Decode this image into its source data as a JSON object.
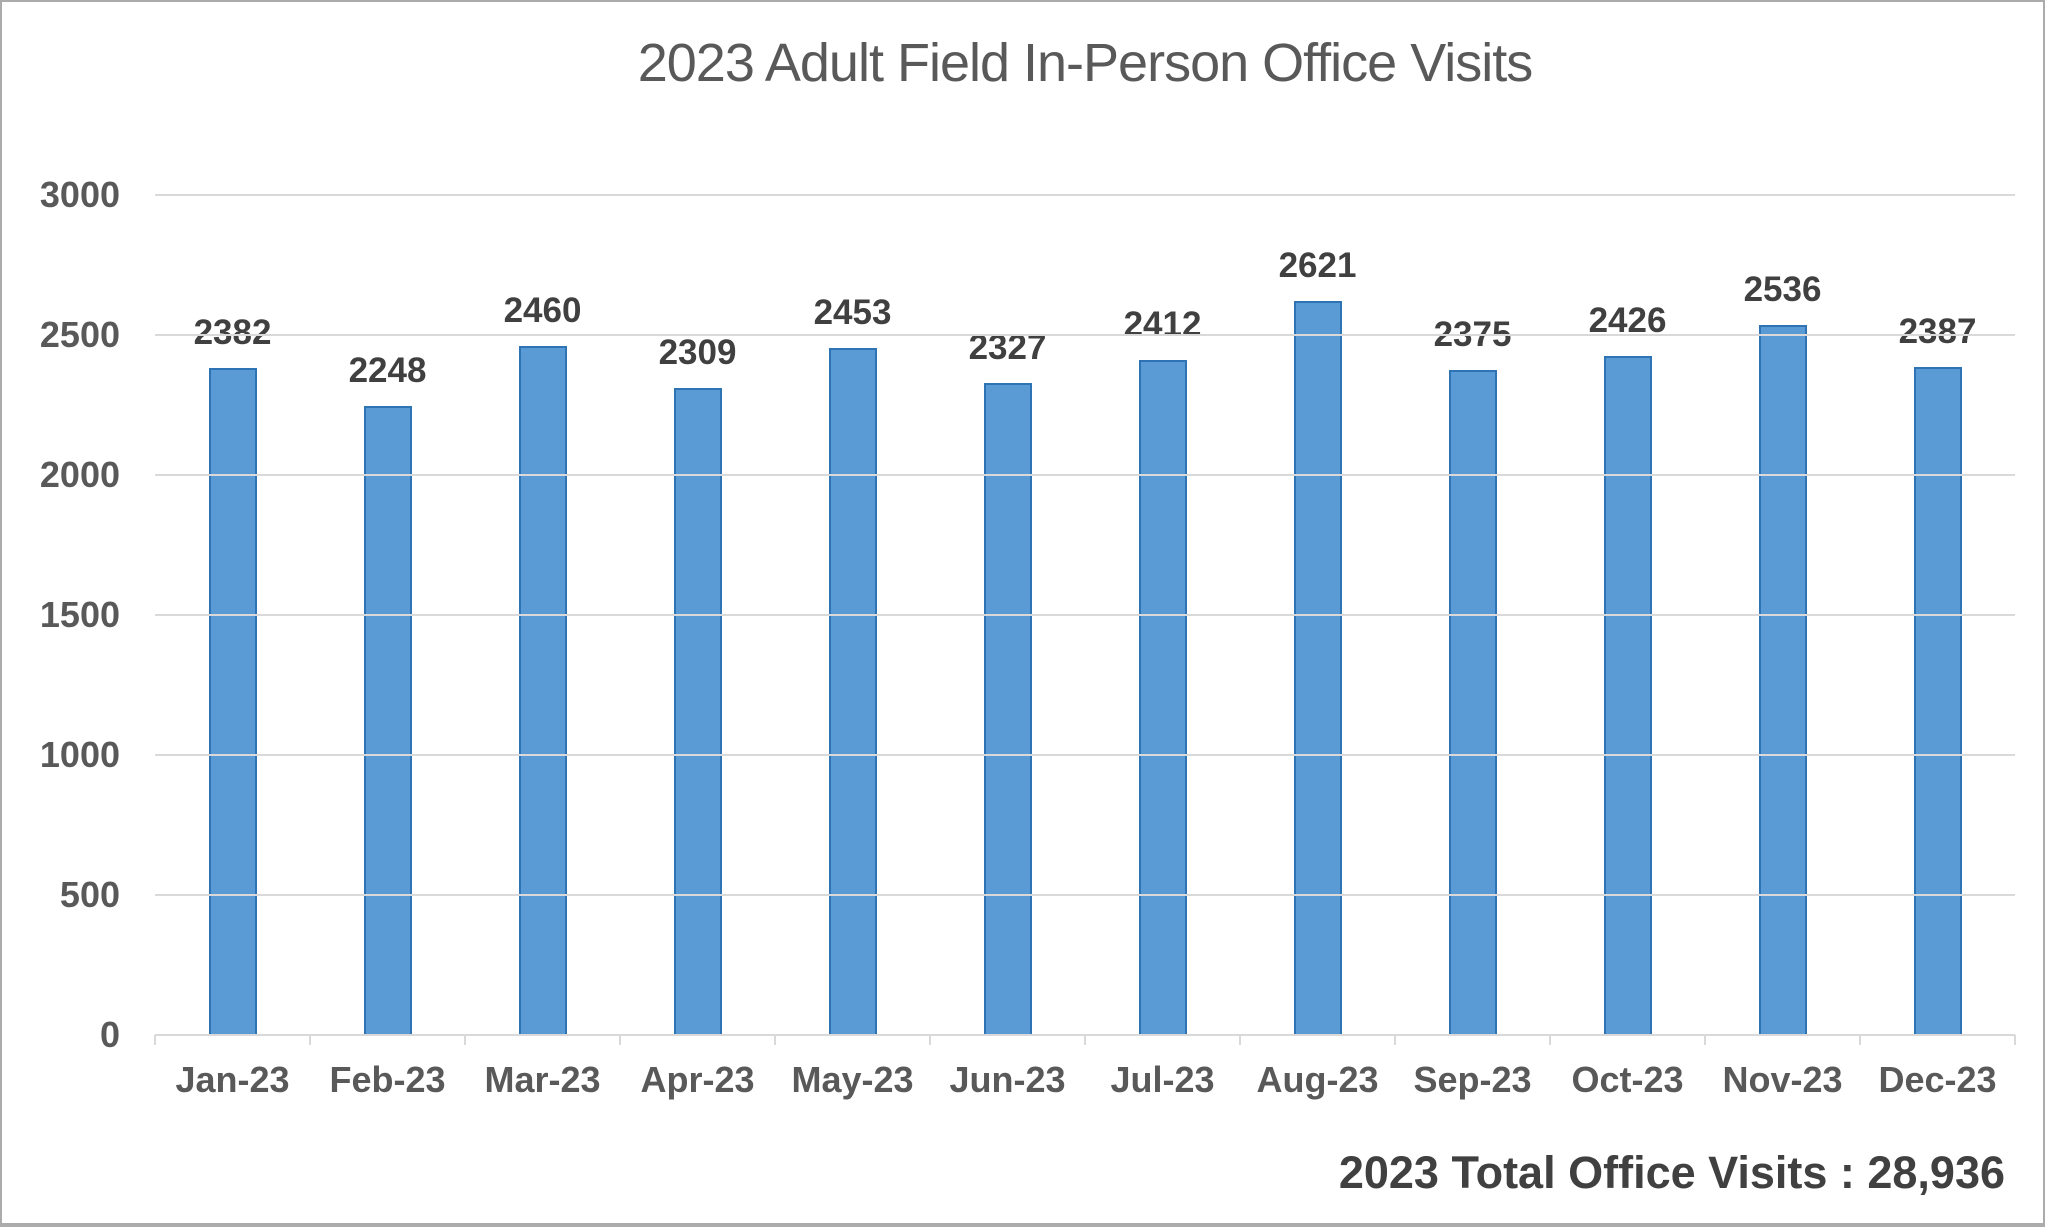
{
  "chart_data": {
    "type": "bar",
    "title": "2023 Adult Field In-Person Office Visits",
    "categories": [
      "Jan-23",
      "Feb-23",
      "Mar-23",
      "Apr-23",
      "May-23",
      "Jun-23",
      "Jul-23",
      "Aug-23",
      "Sep-23",
      "Oct-23",
      "Nov-23",
      "Dec-23"
    ],
    "values": [
      2382,
      2248,
      2460,
      2309,
      2453,
      2327,
      2412,
      2621,
      2375,
      2426,
      2536,
      2387
    ],
    "xlabel": "",
    "ylabel": "",
    "ylim": [
      0,
      3000
    ],
    "yticks": [
      0,
      500,
      1000,
      1500,
      2000,
      2500,
      3000
    ],
    "grid": "horizontal",
    "legend": "none",
    "data_labels": "outside-end"
  },
  "footer": {
    "total_label": "2023 Total Office Visits : 28,936"
  },
  "colors": {
    "bar_fill": "#5b9bd5",
    "bar_border": "#2e74b5",
    "gridline": "#d9d9d9",
    "axis_text": "#595959",
    "data_label_text": "#404040",
    "title_text": "#595959",
    "frame_border": "#ababab",
    "background": "#ffffff"
  }
}
